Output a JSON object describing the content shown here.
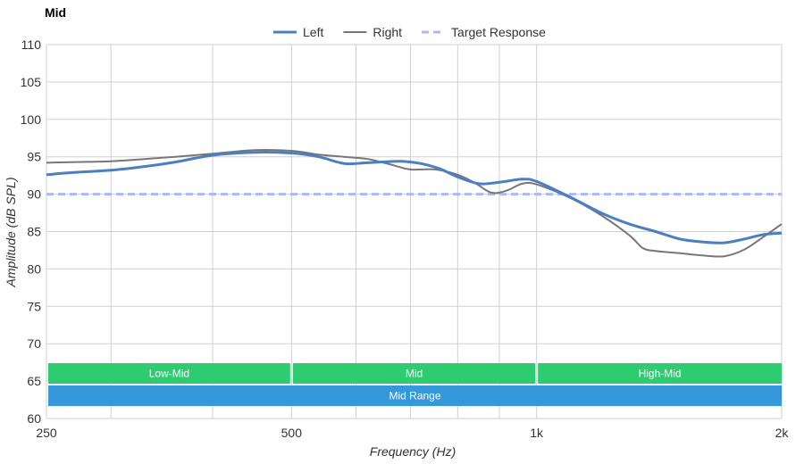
{
  "chart_data": {
    "type": "line",
    "title": "Mid",
    "xlabel": "Frequency (Hz)",
    "ylabel": "Amplitude (dB SPL)",
    "x_scale": "log",
    "xlim": [
      250,
      2000
    ],
    "ylim": [
      60,
      110
    ],
    "grid": true,
    "legend_position": "top",
    "x_ticks": [
      {
        "value": 250,
        "label": "250"
      },
      {
        "value": 500,
        "label": "500"
      },
      {
        "value": 1000,
        "label": "1k"
      },
      {
        "value": 2000,
        "label": "2k"
      }
    ],
    "x_minor_grid": [
      300,
      400,
      600,
      700,
      800,
      900
    ],
    "y_ticks": [
      60,
      65,
      70,
      75,
      80,
      85,
      90,
      95,
      100,
      105,
      110
    ],
    "series": [
      {
        "name": "Left",
        "color": "#4a7fc1",
        "style": "solid-thick",
        "x": [
          250,
          270,
          300,
          330,
          360,
          400,
          450,
          500,
          540,
          580,
          620,
          680,
          720,
          760,
          800,
          850,
          900,
          960,
          1000,
          1100,
          1200,
          1300,
          1400,
          1500,
          1600,
          1700,
          1800,
          1900,
          2000
        ],
        "y": [
          92.6,
          92.9,
          93.2,
          93.7,
          94.3,
          95.2,
          95.6,
          95.5,
          95.0,
          94.1,
          94.2,
          94.4,
          94.1,
          93.4,
          92.3,
          91.4,
          91.6,
          92.0,
          91.7,
          89.6,
          87.5,
          86.0,
          85.0,
          84.0,
          83.6,
          83.5,
          84.0,
          84.6,
          84.8
        ]
      },
      {
        "name": "Right",
        "color": "#777777",
        "style": "solid-thin",
        "x": [
          250,
          270,
          300,
          330,
          360,
          400,
          450,
          500,
          540,
          580,
          620,
          660,
          700,
          750,
          800,
          840,
          880,
          920,
          960,
          1000,
          1100,
          1200,
          1300,
          1350,
          1400,
          1500,
          1600,
          1700,
          1800,
          1900,
          2000
        ],
        "y": [
          94.2,
          94.3,
          94.4,
          94.7,
          95.0,
          95.4,
          95.9,
          95.8,
          95.3,
          95.0,
          94.7,
          94.0,
          93.3,
          93.3,
          92.6,
          91.5,
          90.2,
          90.5,
          91.4,
          91.3,
          89.5,
          87.2,
          84.5,
          82.8,
          82.4,
          82.1,
          81.8,
          81.7,
          82.6,
          84.3,
          86.0
        ]
      },
      {
        "name": "Target Response",
        "color": "#aab8ff",
        "style": "dashed",
        "x": [
          250,
          2000
        ],
        "y": [
          90,
          90
        ]
      }
    ],
    "bands": [
      {
        "label": "Low-Mid",
        "from": 250,
        "to": 500,
        "row": 1,
        "color": "#2ecc71"
      },
      {
        "label": "Mid",
        "from": 500,
        "to": 1000,
        "row": 1,
        "color": "#2ecc71"
      },
      {
        "label": "High-Mid",
        "from": 1000,
        "to": 2000,
        "row": 1,
        "color": "#2ecc71"
      },
      {
        "label": "Mid Range",
        "from": 250,
        "to": 2000,
        "row": 2,
        "color": "#3498db"
      }
    ]
  }
}
